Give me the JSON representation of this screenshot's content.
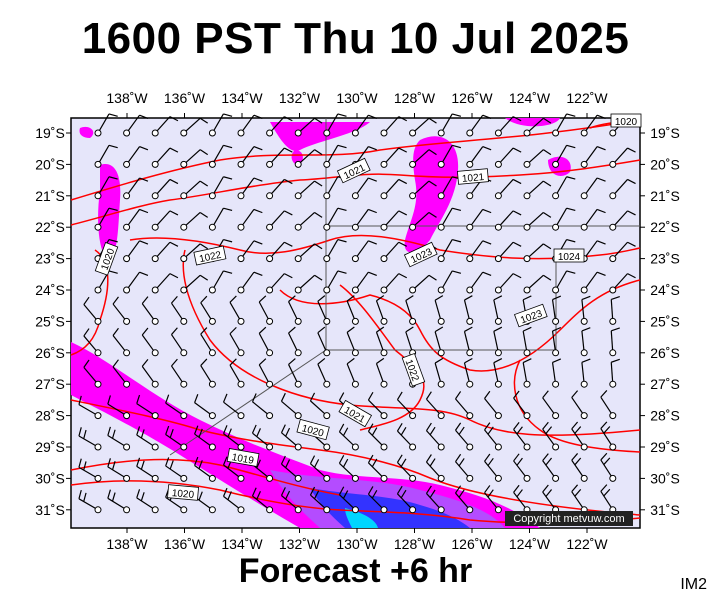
{
  "header": {
    "title": "1600 PST Thu 10 Jul 2025"
  },
  "footer": {
    "forecast": "Forecast +6 hr",
    "tag": "IM2"
  },
  "map": {
    "lon_labels": [
      "138˚W",
      "136˚W",
      "134˚W",
      "132˚W",
      "130˚W",
      "128˚W",
      "126˚W",
      "124˚W",
      "122˚W"
    ],
    "lat_labels": [
      "19˚S",
      "20˚S",
      "21˚S",
      "22˚S",
      "23˚S",
      "24˚S",
      "25˚S",
      "26˚S",
      "27˚S",
      "28˚S",
      "29˚S",
      "30˚S",
      "31˚S"
    ],
    "isobar_labels": [
      "1020",
      "1021",
      "1021",
      "1020",
      "1022",
      "1023",
      "1024",
      "1023",
      "1022",
      "1021",
      "1020",
      "1019",
      "1020"
    ],
    "copyright": "Copyright metvuw.com",
    "colors": {
      "land_bg": "#e6e6fa",
      "isobar": "#ff0000",
      "rain_light": "#ff00ff",
      "rain_heavy": "#3333ff"
    }
  }
}
